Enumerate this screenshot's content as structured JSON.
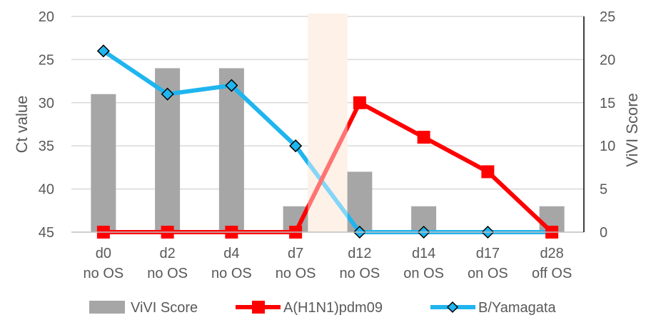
{
  "chart_data": {
    "type": "bar+line",
    "categories": [
      [
        "d0",
        "no OS"
      ],
      [
        "d2",
        "no OS"
      ],
      [
        "d4",
        "no OS"
      ],
      [
        "d7",
        "no OS"
      ],
      [
        "d12",
        "no OS"
      ],
      [
        "d14",
        "on OS"
      ],
      [
        "d17",
        "on OS"
      ],
      [
        "d28",
        "off OS"
      ]
    ],
    "y_left": {
      "label": "Ct value",
      "min": 20,
      "max": 45,
      "ticks": [
        20,
        25,
        30,
        35,
        40,
        45
      ],
      "inverted": true
    },
    "y_right": {
      "label": "ViVI Score",
      "min": 0,
      "max": 25,
      "ticks": [
        0,
        5,
        10,
        15,
        20,
        25
      ]
    },
    "series": [
      {
        "name": "ViVI Score",
        "type": "bar",
        "axis": "right",
        "color": "#a6a6a6",
        "values": [
          16,
          19,
          19,
          3,
          7,
          3,
          0,
          3
        ]
      },
      {
        "name": "A(H1N1)pdm09",
        "type": "line",
        "axis": "left",
        "marker": "square",
        "color": "#ff0000",
        "values": [
          45,
          45,
          45,
          45,
          30,
          34,
          38,
          45
        ]
      },
      {
        "name": "B/Yamagata",
        "type": "line",
        "axis": "left",
        "marker": "diamond",
        "color": "#1fb5ef",
        "values": [
          24,
          29,
          28,
          35,
          45,
          45,
          45,
          45
        ]
      }
    ],
    "highlight": {
      "between": [
        "d7",
        "d12"
      ],
      "color": "#fbe5d6"
    },
    "grid": true,
    "legend": "bottom"
  }
}
